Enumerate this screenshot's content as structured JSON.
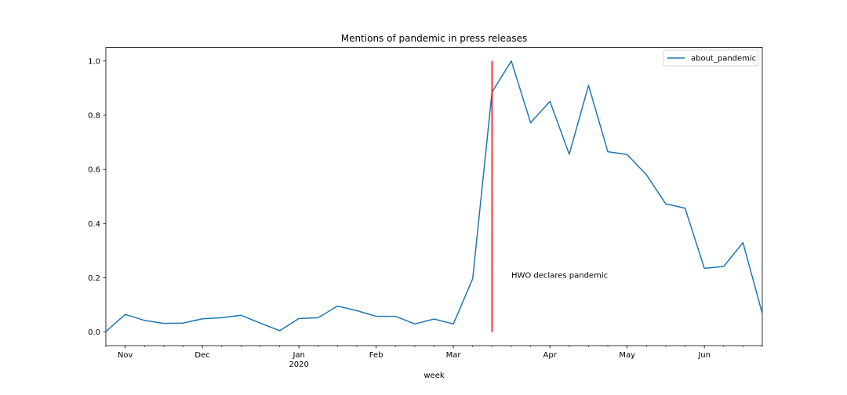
{
  "chart_data": {
    "type": "line",
    "title": "Mentions of pandemic in press releases",
    "xlabel": "week",
    "ylabel": "",
    "xlim": [
      "2019-10-27",
      "2020-06-21"
    ],
    "ylim": [
      -0.05,
      1.05
    ],
    "x_ticks": [
      {
        "date": "2019-11-03",
        "label": "Nov"
      },
      {
        "date": "2019-12-01",
        "label": "Dec"
      },
      {
        "date": "2020-01-05",
        "label": "Jan",
        "sublabel": "2020"
      },
      {
        "date": "2020-02-02",
        "label": "Feb"
      },
      {
        "date": "2020-03-01",
        "label": "Mar"
      },
      {
        "date": "2020-04-05",
        "label": "Apr"
      },
      {
        "date": "2020-05-03",
        "label": "May"
      },
      {
        "date": "2020-05-31",
        "label": "Jun"
      }
    ],
    "y_ticks": [
      0.0,
      0.2,
      0.4,
      0.6,
      0.8,
      1.0
    ],
    "y_tick_labels": [
      "0.0",
      "0.2",
      "0.4",
      "0.6",
      "0.8",
      "1.0"
    ],
    "grid": false,
    "legend_position": "top-right",
    "series": [
      {
        "name": "about_pandemic",
        "color": "#1f77b4",
        "x": [
          "2019-10-27",
          "2019-11-03",
          "2019-11-10",
          "2019-11-17",
          "2019-11-24",
          "2019-12-01",
          "2019-12-08",
          "2019-12-15",
          "2019-12-22",
          "2019-12-29",
          "2020-01-05",
          "2020-01-12",
          "2020-01-19",
          "2020-01-26",
          "2020-02-02",
          "2020-02-09",
          "2020-02-16",
          "2020-02-23",
          "2020-03-01",
          "2020-03-08",
          "2020-03-15",
          "2020-03-22",
          "2020-03-29",
          "2020-04-05",
          "2020-04-12",
          "2020-04-19",
          "2020-04-26",
          "2020-05-03",
          "2020-05-10",
          "2020-05-17",
          "2020-05-24",
          "2020-05-31",
          "2020-06-07",
          "2020-06-14",
          "2020-06-21"
        ],
        "values": [
          0.002,
          0.065,
          0.043,
          0.032,
          0.033,
          0.049,
          0.053,
          0.062,
          0.033,
          0.005,
          0.05,
          0.053,
          0.096,
          0.079,
          0.058,
          0.058,
          0.03,
          0.048,
          0.03,
          0.197,
          0.885,
          1.0,
          0.772,
          0.851,
          0.656,
          0.91,
          0.665,
          0.655,
          0.58,
          0.473,
          0.457,
          0.235,
          0.242,
          0.33,
          0.068
        ]
      }
    ],
    "annotations": [
      {
        "type": "vline",
        "date": "2020-03-15",
        "ymin": 0.0,
        "ymax": 1.0,
        "color": "#ff0000"
      },
      {
        "type": "text",
        "date": "2020-03-22",
        "y": 0.2,
        "text": "HWO declares pandemic"
      }
    ]
  }
}
